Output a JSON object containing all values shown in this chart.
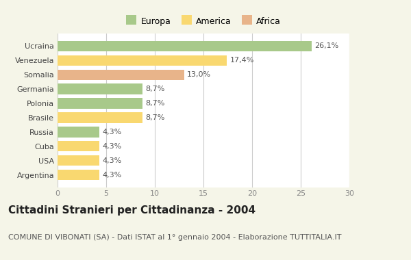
{
  "categories": [
    "Argentina",
    "USA",
    "Cuba",
    "Russia",
    "Brasile",
    "Polonia",
    "Germania",
    "Somalia",
    "Venezuela",
    "Ucraina"
  ],
  "values": [
    4.3,
    4.3,
    4.3,
    4.3,
    8.7,
    8.7,
    8.7,
    13.0,
    17.4,
    26.1
  ],
  "labels": [
    "4,3%",
    "4,3%",
    "4,3%",
    "4,3%",
    "8,7%",
    "8,7%",
    "8,7%",
    "13,0%",
    "17,4%",
    "26,1%"
  ],
  "colors": [
    "#f9d870",
    "#f9d870",
    "#f9d870",
    "#a8c98a",
    "#f9d870",
    "#a8c98a",
    "#a8c98a",
    "#e8b48a",
    "#f9d870",
    "#a8c98a"
  ],
  "legend_labels": [
    "Europa",
    "America",
    "Africa"
  ],
  "legend_colors": [
    "#a8c98a",
    "#f9d870",
    "#e8b48a"
  ],
  "title": "Cittadini Stranieri per Cittadinanza - 2004",
  "subtitle": "COMUNE DI VIBONATI (SA) - Dati ISTAT al 1° gennaio 2004 - Elaborazione TUTTITALIA.IT",
  "xlim": [
    0,
    30
  ],
  "xticks": [
    0,
    5,
    10,
    15,
    20,
    25,
    30
  ],
  "bg_color": "#f5f5e8",
  "plot_bg_color": "#ffffff",
  "title_fontsize": 11,
  "subtitle_fontsize": 8,
  "label_fontsize": 8,
  "tick_fontsize": 8,
  "legend_fontsize": 9
}
